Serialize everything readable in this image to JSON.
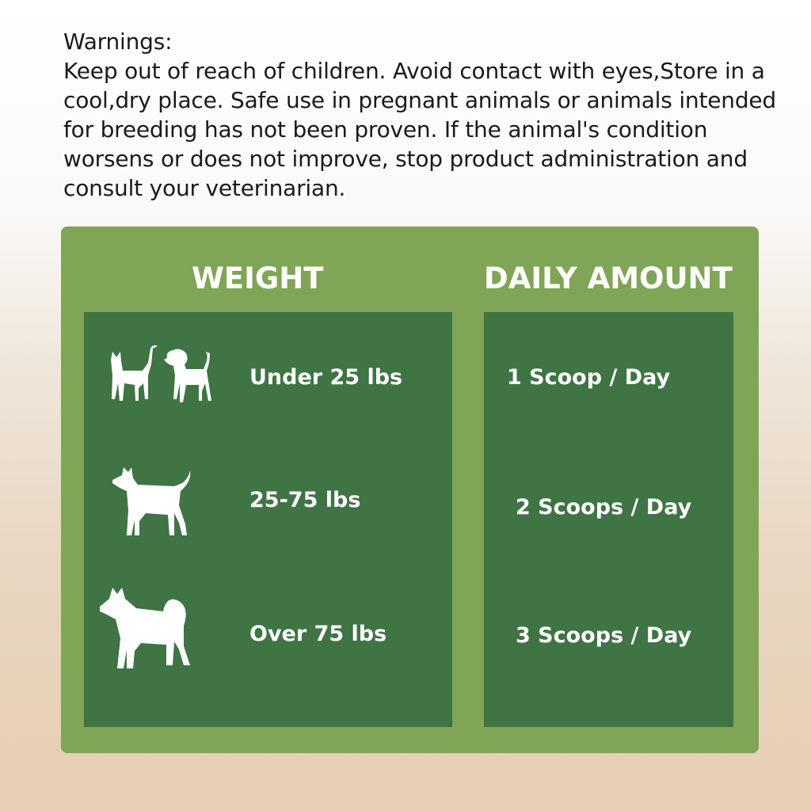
{
  "warnings": {
    "title": "Warnings:",
    "body": "Keep out of reach of children. Avoid contact with eyes,Store in a cool,dry place. Safe use in pregnant animals or animals intended for breeding has not been proven. If the animal's condition worsens or does not improve, stop product administration and consult your veterinarian."
  },
  "table": {
    "weight_header": "WEIGHT",
    "amount_header": "DAILY AMOUNT",
    "rows": [
      {
        "weight": "Under 25 lbs",
        "amount": "1 Scoop / Day",
        "icon": "cat-and-small-dog-icon"
      },
      {
        "weight": "25-75 lbs",
        "amount": "2 Scoops / Day",
        "icon": "medium-dog-icon"
      },
      {
        "weight": "Over 75 lbs",
        "amount": "3 Scoops / Day",
        "icon": "large-dog-icon"
      }
    ]
  },
  "colors": {
    "panel": "#80a556",
    "cell": "#3f7444"
  }
}
